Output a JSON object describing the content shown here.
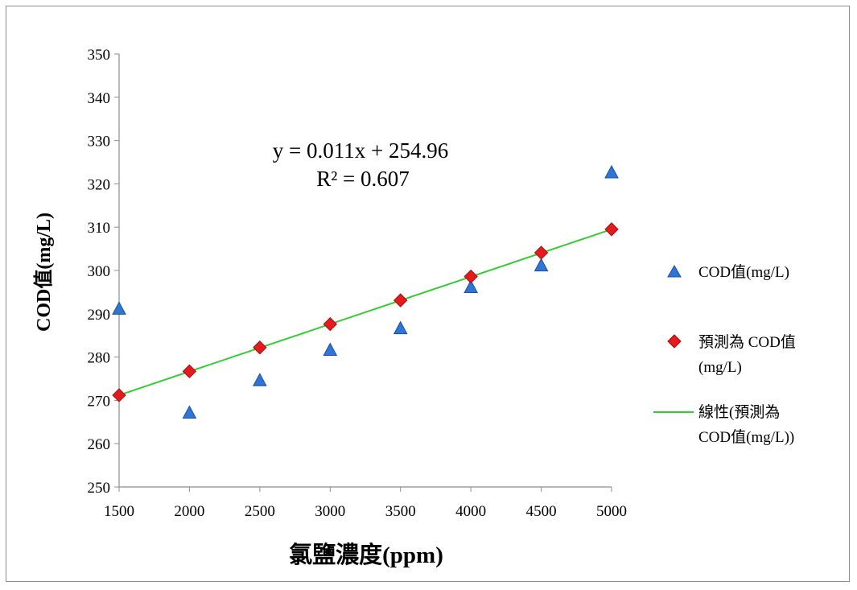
{
  "chart_data": {
    "type": "scatter",
    "title": "",
    "xlabel": "氯鹽濃度(ppm)",
    "ylabel": "COD值(mg/L)",
    "xlim": [
      1500,
      5000
    ],
    "ylim": [
      250,
      350
    ],
    "xticks": [
      1500,
      2000,
      2500,
      3000,
      3500,
      4000,
      4500,
      5000
    ],
    "yticks": [
      250,
      260,
      270,
      280,
      290,
      300,
      310,
      320,
      330,
      340,
      350
    ],
    "grid": false,
    "legend_position": "right",
    "series": [
      {
        "name": "COD值(mg/L)",
        "marker": "triangle",
        "color": "#2e75d6",
        "x": [
          1500,
          2000,
          2500,
          3000,
          3500,
          4000,
          4500,
          5000
        ],
        "y": [
          291,
          267,
          274.5,
          281.5,
          286.5,
          296,
          301,
          322.5
        ]
      },
      {
        "name": "預測為 COD值(mg/L)",
        "marker": "diamond",
        "color": "#e41a1c",
        "x": [
          1500,
          2000,
          2500,
          3000,
          3500,
          4000,
          4500,
          5000
        ],
        "y": [
          271.2,
          276.7,
          282.2,
          287.6,
          293.1,
          298.6,
          304.1,
          309.5
        ]
      },
      {
        "name": "線性(預測為 COD值(mg/L))",
        "marker": "line",
        "color": "#33cc33",
        "x": [
          1500,
          5000
        ],
        "y": [
          271.2,
          309.5
        ]
      }
    ],
    "annotations": {
      "equation": "y = 0.011x + 254.96",
      "r_squared": "R² = 0.607"
    },
    "legend_lines": {
      "series1": [
        "COD值(mg/L)"
      ],
      "series2": [
        "預測為 COD值",
        "(mg/L)"
      ],
      "series3": [
        "線性(預測為",
        "COD值(mg/L))"
      ]
    }
  }
}
